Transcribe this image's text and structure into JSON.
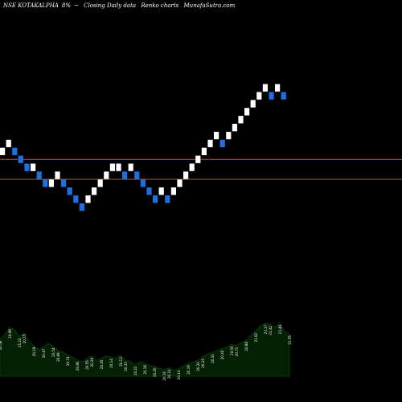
{
  "header": {
    "ticker": "NSE KOTAKALPHA",
    "pct": "8%",
    "arrow": "~",
    "type_label": "Closing Daily data",
    "chart_label": "Renko charts",
    "site": "MunafaSutra.com"
  },
  "colors": {
    "background": "#000000",
    "up_brick": "#ffffff",
    "down_brick": "#1f6fe0",
    "reference_line": "#c2581a",
    "volume_fill": "#032003",
    "volume_edge": "#0a3a0a",
    "label_text": "#ffffff"
  },
  "chart_data": {
    "type": "renko",
    "bricks": [
      {
        "v": 25.6,
        "d": "up"
      },
      {
        "v": 25.8,
        "d": "up"
      },
      {
        "v": 25.6,
        "d": "down"
      },
      {
        "v": 25.4,
        "d": "down"
      },
      {
        "v": 25.2,
        "d": "down"
      },
      {
        "v": 25.2,
        "d": "up"
      },
      {
        "v": 25.0,
        "d": "down"
      },
      {
        "v": 24.8,
        "d": "down"
      },
      {
        "v": 24.8,
        "d": "up"
      },
      {
        "v": 25.0,
        "d": "up"
      },
      {
        "v": 24.8,
        "d": "down"
      },
      {
        "v": 24.6,
        "d": "down"
      },
      {
        "v": 24.4,
        "d": "down"
      },
      {
        "v": 24.2,
        "d": "down"
      },
      {
        "v": 24.4,
        "d": "up"
      },
      {
        "v": 24.6,
        "d": "up"
      },
      {
        "v": 24.8,
        "d": "up"
      },
      {
        "v": 25.0,
        "d": "up"
      },
      {
        "v": 25.2,
        "d": "up"
      },
      {
        "v": 25.2,
        "d": "up"
      },
      {
        "v": 25.0,
        "d": "down"
      },
      {
        "v": 25.2,
        "d": "up"
      },
      {
        "v": 25.0,
        "d": "down"
      },
      {
        "v": 24.8,
        "d": "down"
      },
      {
        "v": 24.6,
        "d": "down"
      },
      {
        "v": 24.4,
        "d": "down"
      },
      {
        "v": 24.6,
        "d": "up"
      },
      {
        "v": 24.4,
        "d": "down"
      },
      {
        "v": 24.6,
        "d": "up"
      },
      {
        "v": 24.8,
        "d": "up"
      },
      {
        "v": 25.0,
        "d": "up"
      },
      {
        "v": 25.2,
        "d": "up"
      },
      {
        "v": 25.4,
        "d": "up"
      },
      {
        "v": 25.6,
        "d": "up"
      },
      {
        "v": 25.8,
        "d": "up"
      },
      {
        "v": 26.0,
        "d": "up"
      },
      {
        "v": 25.8,
        "d": "down"
      },
      {
        "v": 26.0,
        "d": "up"
      },
      {
        "v": 26.2,
        "d": "up"
      },
      {
        "v": 26.4,
        "d": "up"
      },
      {
        "v": 26.6,
        "d": "up"
      },
      {
        "v": 26.8,
        "d": "up"
      },
      {
        "v": 27.0,
        "d": "up"
      },
      {
        "v": 27.2,
        "d": "up"
      },
      {
        "v": 27.0,
        "d": "down"
      },
      {
        "v": 27.2,
        "d": "up"
      },
      {
        "v": 27.0,
        "d": "down"
      }
    ],
    "reference_lines": [
      25.4,
      24.9
    ],
    "ylim": [
      19.5,
      28.6
    ],
    "volume_values": [
      0.7,
      0.78,
      0.92,
      0.88,
      0.75,
      0.82,
      0.66,
      0.58,
      0.5,
      0.55,
      0.62,
      0.57,
      0.48,
      0.46,
      0.4,
      0.36,
      0.31,
      0.27,
      0.33,
      0.38,
      0.3,
      0.34,
      0.38,
      0.36,
      0.34,
      0.39,
      0.3,
      0.28,
      0.22,
      0.27,
      0.24,
      0.2,
      0.19,
      0.15,
      0.12,
      0.16,
      0.1,
      0.14,
      0.19,
      0.24,
      0.27,
      0.3,
      0.36,
      0.42,
      0.45,
      0.48,
      0.52,
      0.55,
      0.6,
      0.58,
      0.63,
      0.68,
      0.77,
      0.85,
      0.95,
      1.0,
      0.98,
      0.92,
      1.0,
      0.85,
      0.8
    ],
    "volume_labels": [
      "20.58",
      "20.99",
      "21.22",
      "20.75",
      "20.19",
      "20.47",
      "20.54",
      "20.69",
      "20.74",
      "20.80",
      "20.55",
      "20.29",
      "20.45",
      "20.14",
      "20.13",
      "20.33",
      "20.22",
      "20.18",
      "20.20",
      "20.16",
      "20.10",
      "20.14",
      "20.19",
      "20.20",
      "20.24",
      "20.31",
      "20.40",
      "20.55",
      "20.71",
      "20.88",
      "21.02",
      "21.17",
      "21.32",
      "21.49",
      "21.55"
    ]
  }
}
